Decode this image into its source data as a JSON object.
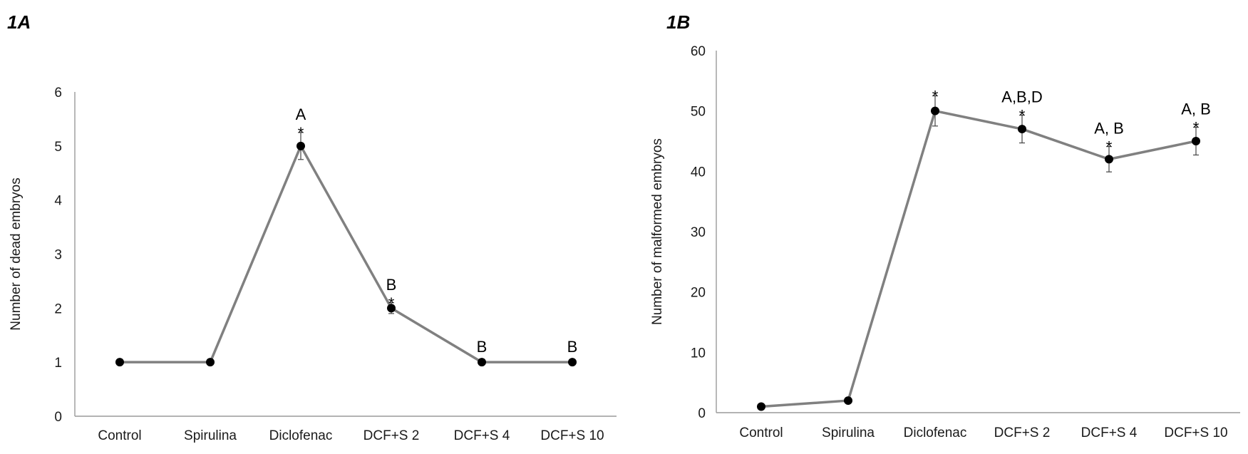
{
  "chart_data": [
    {
      "type": "line",
      "panel_label": "1A",
      "ylabel": "Number of dead embryos",
      "xlabel": "",
      "ylim": [
        0,
        6
      ],
      "yticks": [
        "0",
        "1",
        "2",
        "3",
        "4",
        "5",
        "6"
      ],
      "categories": [
        "Control",
        "Spirulina",
        "Diclofenac",
        "DCF+S 2",
        "DCF+S 4",
        "DCF+S 10"
      ],
      "series": [
        {
          "values": [
            1,
            1,
            5,
            2,
            1,
            1
          ],
          "error": [
            0,
            0,
            0.25,
            0.1,
            0,
            0
          ]
        }
      ],
      "annotations": [
        {
          "letters": "",
          "star": ""
        },
        {
          "letters": "",
          "star": ""
        },
        {
          "letters": "A",
          "star": "*"
        },
        {
          "letters": "B",
          "star": "*"
        },
        {
          "letters": "B",
          "star": ""
        },
        {
          "letters": "B",
          "star": ""
        }
      ],
      "grid": false,
      "line_color": "#808080",
      "marker_color": "#000000"
    },
    {
      "type": "line",
      "panel_label": "1B",
      "ylabel": "Number of malformed embryos",
      "xlabel": "",
      "ylim": [
        0,
        60
      ],
      "yticks": [
        "0",
        "10",
        "20",
        "30",
        "40",
        "50",
        "60"
      ],
      "categories": [
        "Control",
        "Spirulina",
        "Diclofenac",
        "DCF+S 2",
        "DCF+S 4",
        "DCF+S 10"
      ],
      "series": [
        {
          "values": [
            1,
            2,
            50,
            47,
            42,
            45
          ],
          "error": [
            0,
            0,
            2.5,
            2.3,
            2.1,
            2.3
          ]
        }
      ],
      "annotations": [
        {
          "letters": "",
          "star": ""
        },
        {
          "letters": "",
          "star": ""
        },
        {
          "letters": "",
          "star": "*"
        },
        {
          "letters": "A,B,D",
          "star": "*"
        },
        {
          "letters": "A, B",
          "star": "*"
        },
        {
          "letters": "A, B",
          "star": "*"
        }
      ],
      "grid": false,
      "line_color": "#808080",
      "marker_color": "#000000"
    }
  ]
}
